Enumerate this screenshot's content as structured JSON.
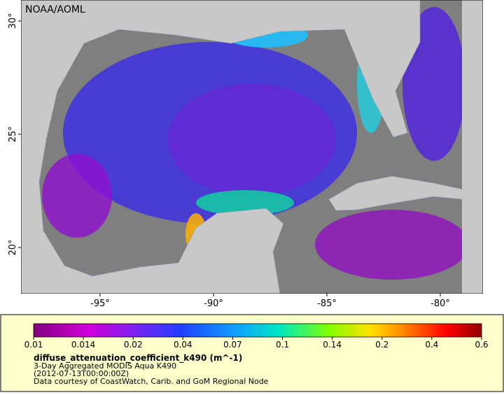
{
  "map": {
    "credit_label": "NOAA/AOML",
    "lat_ticks": [
      {
        "value": 20,
        "label": "20°"
      },
      {
        "value": 25,
        "label": "25°"
      },
      {
        "value": 30,
        "label": "30°"
      }
    ],
    "lon_ticks": [
      {
        "value": -95,
        "label": "-95°"
      },
      {
        "value": -90,
        "label": "-90°"
      },
      {
        "value": -85,
        "label": "-85°"
      },
      {
        "value": -80,
        "label": "-80°"
      }
    ],
    "colorbar_ticks": [
      0.01,
      0.014,
      0.02,
      0.04,
      0.07,
      0.1,
      0.14,
      0.2,
      0.4,
      0.6
    ],
    "variable": "diffuse_attenuation_coefficient_k490 (m^-1)",
    "description": "3-Day Aggregated MODIS Aqua K490",
    "time": "(2012-07-13T00:00:00Z)",
    "source": "Data courtesy of CoastWatch, Carib. and GoM Regional Node"
  }
}
